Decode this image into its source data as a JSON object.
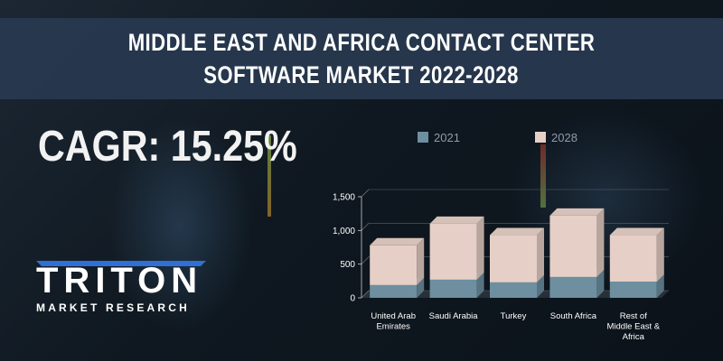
{
  "header": {
    "title_line1": "MIDDLE EAST AND AFRICA CONTACT CENTER",
    "title_line2": "SOFTWARE MARKET 2022-2028"
  },
  "cagr": {
    "text": "CAGR: 15.25%"
  },
  "logo": {
    "name": "TRITON",
    "subtitle": "MARKET RESEARCH"
  },
  "colors": {
    "series_2021": "#6d8fa0",
    "series_2028": "#e6cfc6",
    "logo_accent": "#2f6fd6"
  },
  "chart_data": {
    "type": "bar",
    "stacked": true,
    "categories": [
      [
        "United Arab",
        "Emirates"
      ],
      [
        "Saudi Arabia"
      ],
      [
        "Turkey"
      ],
      [
        "South Africa"
      ],
      [
        "Rest of",
        "Middle East &",
        "Africa"
      ]
    ],
    "series": [
      {
        "name": "2021",
        "values": [
          190,
          270,
          230,
          310,
          240
        ]
      },
      {
        "name": "2028",
        "values": [
          590,
          830,
          700,
          910,
          690
        ]
      }
    ],
    "ylim": [
      0,
      1500
    ],
    "yticks": [
      "0",
      "500",
      "1,000",
      "1,500"
    ],
    "legend_position": "top"
  }
}
